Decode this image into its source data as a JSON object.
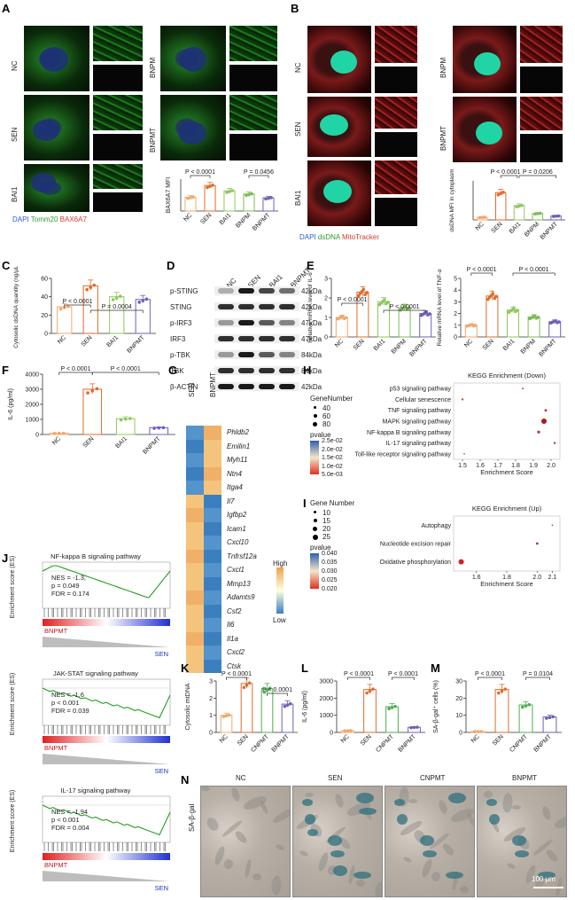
{
  "panels": {
    "A": {
      "letter": "A",
      "rows": [
        "NC",
        "SEN",
        "BAI1"
      ],
      "rows2": [
        "BNPM",
        "BNPMT"
      ],
      "legend": {
        "dapi": "DAPI",
        "tomm": "Tomm20",
        "bax": "BAX6A7"
      },
      "ylabel": "BAX6A7 MFI",
      "pvals": [
        "P < 0.0001",
        "P = 0.0456"
      ],
      "categories": [
        "NC",
        "SEN",
        "BAI1",
        "BNPM",
        "BNPMT"
      ]
    },
    "B": {
      "letter": "B",
      "rows": [
        "NC",
        "SEN",
        "BAI1"
      ],
      "rows2": [
        "BNPM",
        "BNPMT"
      ],
      "legend": {
        "dapi": "DAPI",
        "ds": "dsDNA",
        "mito": "MitoTracker"
      },
      "ylabel": "dsDNA MFI in cytoplasm",
      "pvals": [
        "P < 0.0001",
        "P = 0.0206"
      ],
      "categories": [
        "NC",
        "SEN",
        "BAI1",
        "BNPM",
        "BNPMT"
      ]
    },
    "C": {
      "letter": "C",
      "ylabel": "Cytosolic dsDNA quantity (ng/μL)",
      "pvals": [
        "P < 0.0001",
        "P = 0.0004"
      ],
      "categories": [
        "NC",
        "SEN",
        "BAI1",
        "BNPMT"
      ]
    },
    "D": {
      "letter": "D",
      "lanes": [
        "NC",
        "SEN",
        "BAI1",
        "BNPMT"
      ],
      "rows": [
        {
          "name": "p-STING",
          "kda": "42kDa"
        },
        {
          "name": "STING",
          "kda": "42kDa"
        },
        {
          "name": "p-IRF3",
          "kda": "47kDa"
        },
        {
          "name": "IRF3",
          "kda": "47kDa"
        },
        {
          "name": "p-TBK",
          "kda": "84kDa"
        },
        {
          "name": "TBK",
          "kda": "84kDa"
        },
        {
          "name": "β-ACTIN",
          "kda": "42kDa"
        }
      ]
    },
    "E": {
      "letter": "E",
      "ylabel1": "Relative mRNA level of IL-6",
      "ylabel2": "Relative mRNA level of TNF-α",
      "pvals": [
        "P < 0.0001",
        "P < 0.0001",
        "P < 0.0001",
        "P < 0.0001"
      ],
      "categories": [
        "NC",
        "SEN",
        "BAI1",
        "BNPM",
        "BNPMT"
      ]
    },
    "F": {
      "letter": "F",
      "ylabel": "IL-6 (pg/ml)",
      "pvals": [
        "P < 0.0001",
        "P < 0.0001"
      ],
      "categories": [
        "NC",
        "SEN",
        "BAI1",
        "BNPMT"
      ]
    },
    "G": {
      "letter": "G",
      "cols": [
        "SEN",
        "BNPMT"
      ],
      "genes": [
        "Phldb2",
        "Emilin1",
        "Myh11",
        "Ntn4",
        "Itga4",
        "Il7",
        "Igfbp2",
        "Icam1",
        "Cxcl10",
        "Tnfrsf12a",
        "Cxcl1",
        "Mmp13",
        "Adamts9",
        "Csf2",
        "Il6",
        "Il1a",
        "Cxcl2",
        "Ctsk"
      ],
      "legend_high": "High",
      "legend_low": "Low"
    },
    "H": {
      "letter": "H",
      "title": "KEGG Enrichment (Down)",
      "xlabel": "Enrichment Score",
      "legend_title": "GeneNumber",
      "gene_levels": [
        "40",
        "60",
        "80"
      ],
      "pval_title": "pvalue",
      "pval_ticks": [
        "2.5e-02",
        "2.0e-02",
        "1.5e-02",
        "1.0e-02",
        "5.0e-03"
      ],
      "pathways": [
        "p53 signaling pathway",
        "Cellular senescence",
        "TNF signaling pathway",
        "MAPK signaling pathway",
        "NF-kappa B signaling pathway",
        "IL-17 signaling pathway",
        "Toll-like receptor signaling pathway"
      ],
      "xticks": [
        "1.5",
        "1.6",
        "1.7",
        "1.8",
        "1.9",
        "2.0"
      ]
    },
    "I": {
      "letter": "I",
      "title": "KEGG Enrichment (Up)",
      "xlabel": "Enrichment Score",
      "legend_title": "Gene Number",
      "gene_levels": [
        "10",
        "15",
        "20",
        "25"
      ],
      "pval_title": "pvalue",
      "pval_ticks": [
        "0.040",
        "0.035",
        "0.030",
        "0.025",
        "0.020"
      ],
      "pathways": [
        "Autophagy",
        "Nucleotide excision repair",
        "Oxidative phosphorylation"
      ],
      "xticks": [
        "1.6",
        "1.8",
        "2.0",
        "2.1"
      ]
    },
    "J": {
      "letter": "J",
      "ylabel": "Enrichment score (ES)",
      "plots": [
        {
          "title": "NF-kappa B signaling pathway",
          "nes": "NES = -1.3,",
          "p": "p = 0.049",
          "fdr": "FDR = 0.174"
        },
        {
          "title": "JAK-STAT signaling pathway",
          "nes": "NES = -1.6",
          "p": "p < 0.001",
          "fdr": "FDR = 0.039"
        },
        {
          "title": "IL-17 signaling pathway",
          "nes": "NES = -1.94",
          "p": "p < 0.001",
          "fdr": "FDR = 0.004"
        }
      ],
      "left_label": "BNPMT",
      "right_label": "SEN"
    },
    "K": {
      "letter": "K",
      "ylabel": "Cytosolic mtDNA",
      "pvals": [
        "P < 0.0001",
        "P < 0.0001"
      ],
      "categories": [
        "NC",
        "SEN",
        "CNPMT",
        "BNPMT"
      ]
    },
    "L": {
      "letter": "L",
      "ylabel": "IL-6 (pg/ml)",
      "pvals": [
        "P < 0.0001",
        "P < 0.0001"
      ],
      "categories": [
        "NC",
        "SEN",
        "CNPMT",
        "BNPMT"
      ]
    },
    "M": {
      "letter": "M",
      "ylabel": "SA-β-gal⁺ cells (%)",
      "pvals": [
        "P < 0.0001",
        "P = 0.0104"
      ],
      "categories": [
        "NC",
        "SEN",
        "CNPMT",
        "BNPMT"
      ]
    },
    "N": {
      "letter": "N",
      "row_label": "SA-β-gal",
      "cols": [
        "NC",
        "SEN",
        "CNPMT",
        "BNPMT"
      ],
      "scale": "100 μm"
    }
  },
  "colors": {
    "NC": "#f0a96b",
    "SEN": "#e06a2a",
    "BAI1": "#8fc85a",
    "BNPM": "#7dbb55",
    "BNPMT": "#6b62b8",
    "CNPMT": "#4caf50"
  },
  "chart_data": [
    {
      "type": "bar",
      "panel": "A",
      "title": "",
      "ylabel": "BAX6A7 MFI",
      "categories": [
        "NC",
        "SEN",
        "BAI1",
        "BNPM",
        "BNPMT"
      ],
      "values": [
        0.65,
        1.2,
        0.95,
        0.8,
        0.62
      ],
      "ylim": [
        0,
        1.5
      ]
    },
    {
      "type": "bar",
      "panel": "B",
      "ylabel": "dsDNA MFI in cytoplasm",
      "categories": [
        "NC",
        "SEN",
        "BAI1",
        "BNPM",
        "BNPMT"
      ],
      "values": [
        2,
        21,
        11,
        5,
        3
      ],
      "ylim": [
        0,
        30
      ]
    },
    {
      "type": "bar",
      "panel": "C",
      "ylabel": "Cytosolic dsDNA quantity (ng/μL)",
      "categories": [
        "NC",
        "SEN",
        "BAI1",
        "BNPMT"
      ],
      "values": [
        29,
        52,
        40,
        37
      ],
      "ylim": [
        0,
        60
      ],
      "yticks": [
        0,
        20,
        40,
        60
      ]
    },
    {
      "type": "bar",
      "panel": "E1",
      "ylabel": "Relative mRNA level of IL-6",
      "categories": [
        "NC",
        "SEN",
        "BAI1",
        "BNPM",
        "BNPMT"
      ],
      "values": [
        1.0,
        2.3,
        1.8,
        1.5,
        1.2
      ],
      "ylim": [
        0,
        3
      ],
      "yticks": [
        0,
        1,
        2,
        3
      ]
    },
    {
      "type": "bar",
      "panel": "E2",
      "ylabel": "Relative mRNA level of TNF-α",
      "categories": [
        "NC",
        "SEN",
        "BAI1",
        "BNPM",
        "BNPMT"
      ],
      "values": [
        1.0,
        3.5,
        2.3,
        1.7,
        1.3
      ],
      "ylim": [
        0,
        5
      ],
      "yticks": [
        0,
        1,
        2,
        3,
        4,
        5
      ]
    },
    {
      "type": "bar",
      "panel": "F",
      "ylabel": "IL-6 (pg/ml)",
      "categories": [
        "NC",
        "SEN",
        "BAI1",
        "BNPMT"
      ],
      "values": [
        80,
        3000,
        1050,
        450
      ],
      "ylim": [
        0,
        4000
      ],
      "yticks": [
        0,
        1000,
        2000,
        3000,
        4000
      ]
    },
    {
      "type": "bar",
      "panel": "K",
      "ylabel": "Cytosolic mtDNA",
      "categories": [
        "NC",
        "SEN",
        "CNPMT",
        "BNPMT"
      ],
      "values": [
        1.0,
        2.85,
        2.55,
        1.65
      ],
      "ylim": [
        0,
        3
      ],
      "yticks": [
        0,
        1,
        2,
        3
      ]
    },
    {
      "type": "bar",
      "panel": "L",
      "ylabel": "IL-6 (pg/ml)",
      "categories": [
        "NC",
        "SEN",
        "CNPMT",
        "BNPMT"
      ],
      "values": [
        100,
        2500,
        1500,
        300
      ],
      "ylim": [
        0,
        3000
      ],
      "yticks": [
        0,
        1000,
        2000,
        3000
      ]
    },
    {
      "type": "bar",
      "panel": "M",
      "ylabel": "SA-β-gal⁺ cells (%)",
      "categories": [
        "NC",
        "SEN",
        "CNPMT",
        "BNPMT"
      ],
      "values": [
        0.5,
        25,
        16,
        9
      ],
      "ylim": [
        0,
        30
      ],
      "yticks": [
        0,
        10,
        20,
        30
      ]
    },
    {
      "type": "scatter",
      "panel": "H",
      "title": "KEGG Enrichment (Down)",
      "xlabel": "Enrichment Score",
      "categories": [
        "p53 signaling pathway",
        "Cellular senescence",
        "TNF signaling pathway",
        "MAPK signaling pathway",
        "NF-kappa B signaling pathway",
        "IL-17 signaling pathway",
        "Toll-like receptor signaling pathway"
      ],
      "x": [
        1.84,
        1.5,
        1.97,
        1.96,
        1.93,
        2.02,
        1.51
      ],
      "xlim": [
        1.45,
        2.05
      ]
    },
    {
      "type": "scatter",
      "panel": "I",
      "title": "KEGG Enrichment (Up)",
      "xlabel": "Enrichment Score",
      "categories": [
        "Autophagy",
        "Nucleotide excision repair",
        "Oxidative phosphorylation"
      ],
      "x": [
        2.1,
        2.0,
        1.5
      ],
      "xlim": [
        1.45,
        2.15
      ]
    }
  ]
}
